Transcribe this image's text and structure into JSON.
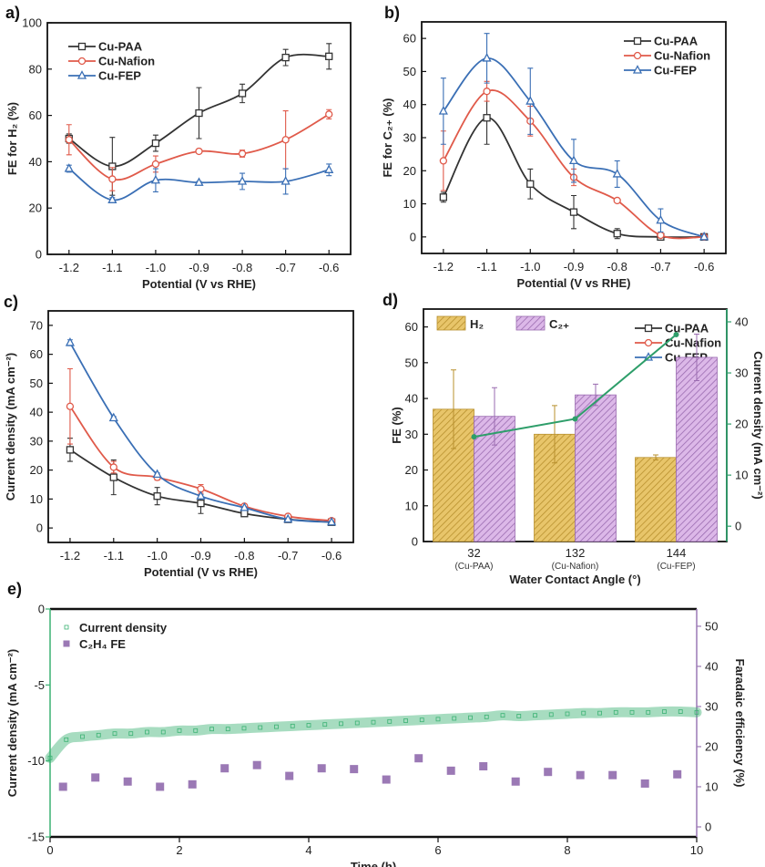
{
  "chart_data": [
    {
      "panel": "a)",
      "type": "line",
      "xlabel": "Potential (V vs RHE)",
      "ylabel": "FE for H₂ (%)",
      "xlim": [
        -1.25,
        -0.55
      ],
      "ylim": [
        0,
        100
      ],
      "x": [
        -1.2,
        -1.1,
        -1.0,
        -0.9,
        -0.8,
        -0.7,
        -0.6
      ],
      "x_ticks": [
        "-1.2",
        "-1.1",
        "-1.0",
        "-0.9",
        "-0.8",
        "-0.7",
        "-0.6"
      ],
      "y_ticks": [
        "0",
        "20",
        "40",
        "60",
        "80",
        "100"
      ],
      "legend": "top-left",
      "series": [
        {
          "name": "Cu-PAA",
          "color": "#333333",
          "marker": "square",
          "values": [
            50,
            38,
            48,
            61,
            69.5,
            85,
            85.5
          ],
          "errors": [
            2,
            12.5,
            3.5,
            11,
            4,
            3.5,
            5.5
          ]
        },
        {
          "name": "Cu-Nafion",
          "color": "#e05a4a",
          "marker": "circle",
          "values": [
            49.5,
            32.5,
            39,
            44.5,
            43.5,
            49.5,
            60.5
          ],
          "errors": [
            6.5,
            5,
            3.5,
            0.5,
            1.5,
            12.5,
            2
          ]
        },
        {
          "name": "Cu-FEP",
          "color": "#3a6fb5",
          "marker": "triangle",
          "values": [
            37,
            23.5,
            32,
            31,
            31.5,
            31.5,
            36.5
          ],
          "errors": [
            1.5,
            1,
            5,
            0.5,
            3.5,
            5.5,
            2.5
          ]
        }
      ]
    },
    {
      "panel": "b)",
      "type": "line",
      "xlabel": "Potential (V vs RHE)",
      "ylabel": "FE for C₂₊ (%)",
      "xlim": [
        -1.25,
        -0.55
      ],
      "ylim": [
        -5,
        65
      ],
      "x": [
        -1.2,
        -1.1,
        -1.0,
        -0.9,
        -0.8,
        -0.7,
        -0.6
      ],
      "x_ticks": [
        "-1.2",
        "-1.1",
        "-1.0",
        "-0.9",
        "-0.8",
        "-0.7",
        "-0.6"
      ],
      "y_ticks": [
        "0",
        "10",
        "20",
        "30",
        "40",
        "50",
        "60"
      ],
      "legend": "top-right",
      "series": [
        {
          "name": "Cu-PAA",
          "color": "#333333",
          "marker": "square",
          "values": [
            12,
            36,
            16,
            7.5,
            1,
            0,
            0
          ],
          "errors": [
            1.5,
            8,
            4.5,
            5,
            1.5,
            0,
            0
          ]
        },
        {
          "name": "Cu-Nafion",
          "color": "#e05a4a",
          "marker": "circle",
          "values": [
            23,
            44,
            35,
            18,
            11,
            0.5,
            0
          ],
          "errors": [
            9,
            3,
            4.5,
            2.5,
            0.5,
            0,
            0
          ]
        },
        {
          "name": "Cu-FEP",
          "color": "#3a6fb5",
          "marker": "triangle",
          "values": [
            38,
            54,
            41,
            23,
            19,
            5,
            0
          ],
          "errors": [
            10,
            7.5,
            10,
            6.5,
            4,
            3.5,
            0
          ]
        }
      ]
    },
    {
      "panel": "c)",
      "type": "line",
      "xlabel": "Potential (V vs RHE)",
      "ylabel": "Current density (mA cm⁻²)",
      "xlim": [
        -1.25,
        -0.55
      ],
      "ylim": [
        -5,
        75
      ],
      "x": [
        -1.2,
        -1.1,
        -1.0,
        -0.9,
        -0.8,
        -0.7,
        -0.6
      ],
      "x_ticks": [
        "-1.2",
        "-1.1",
        "-1.0",
        "-0.9",
        "-0.8",
        "-0.7",
        "-0.6"
      ],
      "y_ticks": [
        "0",
        "10",
        "20",
        "30",
        "40",
        "50",
        "60",
        "70"
      ],
      "legend": "top-right",
      "series": [
        {
          "name": "Cu-PAA",
          "color": "#333333",
          "marker": "square",
          "values": [
            27,
            17.5,
            11,
            8.5,
            5,
            3,
            2
          ],
          "errors": [
            4,
            6,
            3,
            3.5,
            0.5,
            0.3,
            0.3
          ]
        },
        {
          "name": "Cu-Nafion",
          "color": "#e05a4a",
          "marker": "circle",
          "values": [
            42,
            21,
            17.5,
            13.5,
            7.5,
            4,
            2.5
          ],
          "errors": [
            13,
            2,
            1,
            1.5,
            0.5,
            0.3,
            0.3
          ]
        },
        {
          "name": "Cu-FEP",
          "color": "#3a6fb5",
          "marker": "triangle",
          "values": [
            64,
            38,
            18.5,
            11,
            7,
            3,
            2
          ],
          "errors": [
            1,
            0.5,
            0.5,
            0.5,
            0.3,
            0.3,
            0.3
          ]
        }
      ]
    },
    {
      "panel": "d)",
      "type": "bar",
      "xlabel": "Water Contact Angle (°)",
      "ylabel": "FE (%)",
      "y2label": "Current density (mA cm⁻²)",
      "categories": [
        "32",
        "132",
        "144"
      ],
      "category_sublabels": [
        "(Cu-PAA)",
        "(Cu-Nafion)",
        "(Cu-FEP)"
      ],
      "ylim": [
        0,
        65
      ],
      "y2lim": [
        -3,
        42.5
      ],
      "y_ticks": [
        "0",
        "10",
        "20",
        "30",
        "40",
        "50",
        "60"
      ],
      "y2_ticks": [
        "0",
        "10",
        "20",
        "30",
        "40"
      ],
      "legend": "top",
      "series": [
        {
          "name": "H₂",
          "color": "#e8c56a",
          "hatch_color": "#b8902e",
          "values": [
            37,
            30,
            23.5
          ],
          "errors": [
            11,
            8,
            0.7
          ]
        },
        {
          "name": "C₂₊",
          "color": "#dcb8e8",
          "hatch_color": "#9a6bb0",
          "values": [
            35,
            41,
            51.5
          ],
          "errors": [
            8,
            3,
            6.5
          ]
        }
      ],
      "line_series": {
        "axis": "right",
        "color": "#2e9e6a",
        "values": [
          17.5,
          21,
          37.5
        ]
      }
    },
    {
      "panel": "e)",
      "type": "scatter",
      "xlabel": "Time (h)",
      "ylabel": "Current density (mA cm⁻²)",
      "y2label": "Faradaic efficiency (%)",
      "xlim": [
        0,
        10
      ],
      "ylim": [
        -15,
        0
      ],
      "y2lim": [
        -2.5,
        54.3
      ],
      "x_ticks": [
        "0",
        "2",
        "4",
        "6",
        "8",
        "10"
      ],
      "y_ticks": [
        "0",
        "-5",
        "-10",
        "-15"
      ],
      "y2_ticks": [
        "0",
        "10",
        "20",
        "30",
        "40",
        "50"
      ],
      "left_color": "#3bb273",
      "right_color": "#9b79b5",
      "legend": "top-left",
      "series": [
        {
          "name": "Current density",
          "axis": "left",
          "marker": "open-square",
          "color": "#3bb273",
          "x": [
            0,
            0.25,
            0.5,
            0.75,
            1,
            1.25,
            1.5,
            1.75,
            2,
            2.25,
            2.5,
            2.75,
            3,
            3.25,
            3.5,
            3.75,
            4,
            4.25,
            4.5,
            4.75,
            5,
            5.25,
            5.5,
            5.75,
            6,
            6.25,
            6.5,
            6.75,
            7,
            7.25,
            7.5,
            7.75,
            8,
            8.25,
            8.5,
            8.75,
            9,
            9.25,
            9.5,
            9.75,
            10
          ],
          "values": [
            -9.8,
            -8.6,
            -8.4,
            -8.3,
            -8.2,
            -8.2,
            -8.1,
            -8.1,
            -8.0,
            -8.0,
            -7.9,
            -7.9,
            -7.85,
            -7.8,
            -7.75,
            -7.7,
            -7.65,
            -7.6,
            -7.55,
            -7.5,
            -7.45,
            -7.4,
            -7.35,
            -7.3,
            -7.25,
            -7.2,
            -7.15,
            -7.1,
            -7.0,
            -7.05,
            -7.0,
            -6.95,
            -6.9,
            -6.85,
            -6.85,
            -6.8,
            -6.8,
            -6.8,
            -6.75,
            -6.75,
            -6.8
          ]
        },
        {
          "name": "C₂H₄ FE",
          "axis": "right",
          "marker": "filled-square",
          "color": "#9b79b5",
          "x": [
            0.2,
            0.7,
            1.2,
            1.7,
            2.2,
            2.7,
            3.2,
            3.7,
            4.2,
            4.7,
            5.2,
            5.7,
            6.2,
            6.7,
            7.2,
            7.7,
            8.2,
            8.7,
            9.2,
            9.7
          ],
          "values": [
            10,
            12.3,
            11.3,
            10,
            10.6,
            14.6,
            15.4,
            12.7,
            14.6,
            14.4,
            11.8,
            17.1,
            14,
            15.1,
            11.3,
            13.7,
            12.9,
            12.9,
            10.8,
            13.1
          ]
        }
      ]
    }
  ]
}
